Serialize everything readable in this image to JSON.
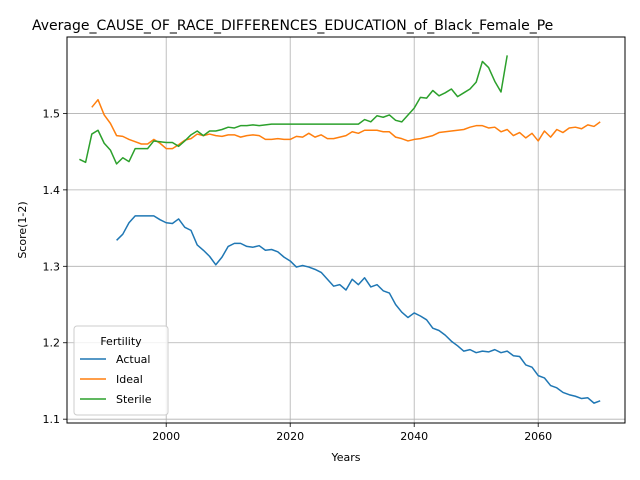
{
  "chart_data": {
    "type": "line",
    "title": "Average_CAUSE_OF_RACE_DIFFERENCES_EDUCATION_of_Black_Female_Pe",
    "xlabel": "Years",
    "ylabel": "Score(1-2)",
    "xlim": [
      1984,
      2074
    ],
    "ylim": [
      1.095,
      1.6
    ],
    "xticks": [
      2000,
      2020,
      2040,
      2060
    ],
    "yticks": [
      1.1,
      1.2,
      1.3,
      1.4,
      1.5
    ],
    "grid": true,
    "legend": {
      "title": "Fertility",
      "position": "lower-left"
    },
    "series": [
      {
        "name": "Actual",
        "color": "#1f77b4",
        "x": [
          1992,
          1993,
          1994,
          1995,
          1996,
          1997,
          1998,
          1999,
          2000,
          2001,
          2002,
          2003,
          2004,
          2005,
          2006,
          2007,
          2008,
          2009,
          2010,
          2011,
          2012,
          2013,
          2014,
          2015,
          2016,
          2017,
          2018,
          2019,
          2020,
          2021,
          2022,
          2023,
          2024,
          2025,
          2026,
          2027,
          2028,
          2029,
          2030,
          2031,
          2032,
          2033,
          2034,
          2035,
          2036,
          2037,
          2038,
          2039,
          2040,
          2041,
          2042,
          2043,
          2044,
          2045,
          2046,
          2047,
          2048,
          2049,
          2050,
          2051,
          2052,
          2053,
          2054,
          2055,
          2056,
          2057,
          2058,
          2059,
          2060,
          2061,
          2062,
          2063,
          2064,
          2065,
          2066,
          2067,
          2068,
          2069,
          2070
        ],
        "values": [
          1.334,
          1.342,
          1.357,
          1.366,
          1.366,
          1.366,
          1.366,
          1.361,
          1.357,
          1.356,
          1.362,
          1.351,
          1.347,
          1.328,
          1.321,
          1.313,
          1.302,
          1.312,
          1.326,
          1.33,
          1.33,
          1.326,
          1.325,
          1.327,
          1.321,
          1.322,
          1.319,
          1.312,
          1.307,
          1.299,
          1.301,
          1.299,
          1.296,
          1.292,
          1.283,
          1.274,
          1.276,
          1.269,
          1.283,
          1.276,
          1.285,
          1.273,
          1.276,
          1.268,
          1.265,
          1.25,
          1.24,
          1.233,
          1.239,
          1.235,
          1.23,
          1.219,
          1.216,
          1.21,
          1.202,
          1.196,
          1.189,
          1.191,
          1.187,
          1.189,
          1.188,
          1.191,
          1.187,
          1.189,
          1.183,
          1.182,
          1.171,
          1.168,
          1.157,
          1.154,
          1.144,
          1.141,
          1.135,
          1.132,
          1.13,
          1.127,
          1.128,
          1.121,
          1.124
        ]
      },
      {
        "name": "Ideal",
        "color": "#ff7f0e",
        "x": [
          1988,
          1989,
          1990,
          1991,
          1992,
          1993,
          1994,
          1995,
          1996,
          1997,
          1998,
          1999,
          2000,
          2001,
          2002,
          2003,
          2004,
          2005,
          2006,
          2007,
          2008,
          2009,
          2010,
          2011,
          2012,
          2013,
          2014,
          2015,
          2016,
          2017,
          2018,
          2019,
          2020,
          2021,
          2022,
          2023,
          2024,
          2025,
          2026,
          2027,
          2028,
          2029,
          2030,
          2031,
          2032,
          2033,
          2034,
          2035,
          2036,
          2037,
          2038,
          2039,
          2040,
          2041,
          2042,
          2043,
          2044,
          2045,
          2046,
          2047,
          2048,
          2049,
          2050,
          2051,
          2052,
          2053,
          2054,
          2055,
          2056,
          2057,
          2058,
          2059,
          2060,
          2061,
          2062,
          2063,
          2064,
          2065,
          2066,
          2067,
          2068,
          2069,
          2070
        ],
        "values": [
          1.508,
          1.518,
          1.498,
          1.487,
          1.471,
          1.47,
          1.466,
          1.463,
          1.46,
          1.46,
          1.466,
          1.461,
          1.454,
          1.454,
          1.459,
          1.465,
          1.467,
          1.473,
          1.471,
          1.473,
          1.471,
          1.47,
          1.472,
          1.472,
          1.469,
          1.471,
          1.472,
          1.471,
          1.466,
          1.466,
          1.467,
          1.466,
          1.466,
          1.47,
          1.469,
          1.474,
          1.469,
          1.472,
          1.467,
          1.467,
          1.469,
          1.471,
          1.476,
          1.474,
          1.478,
          1.478,
          1.478,
          1.476,
          1.476,
          1.469,
          1.467,
          1.464,
          1.466,
          1.467,
          1.469,
          1.471,
          1.475,
          1.476,
          1.477,
          1.478,
          1.479,
          1.482,
          1.484,
          1.484,
          1.481,
          1.482,
          1.476,
          1.479,
          1.471,
          1.475,
          1.468,
          1.474,
          1.464,
          1.477,
          1.469,
          1.479,
          1.475,
          1.481,
          1.482,
          1.48,
          1.485,
          1.483,
          1.489
        ]
      },
      {
        "name": "Sterile",
        "color": "#2ca02c",
        "x": [
          1986,
          1987,
          1988,
          1989,
          1990,
          1991,
          1992,
          1993,
          1994,
          1995,
          1996,
          1997,
          1998,
          1999,
          2000,
          2001,
          2002,
          2003,
          2004,
          2005,
          2006,
          2007,
          2008,
          2009,
          2010,
          2011,
          2012,
          2013,
          2014,
          2015,
          2016,
          2017,
          2018,
          2019,
          2020,
          2021,
          2022,
          2023,
          2024,
          2025,
          2026,
          2027,
          2028,
          2029,
          2030,
          2031,
          2032,
          2033,
          2034,
          2035,
          2036,
          2037,
          2038,
          2039,
          2040,
          2041,
          2042,
          2043,
          2044,
          2045,
          2046,
          2047,
          2048,
          2049,
          2050,
          2051,
          2052,
          2053,
          2054,
          2055
        ],
        "values": [
          1.44,
          1.436,
          1.473,
          1.478,
          1.461,
          1.452,
          1.434,
          1.442,
          1.437,
          1.454,
          1.454,
          1.454,
          1.464,
          1.463,
          1.462,
          1.462,
          1.457,
          1.464,
          1.472,
          1.477,
          1.471,
          1.477,
          1.477,
          1.479,
          1.482,
          1.481,
          1.484,
          1.484,
          1.485,
          1.484,
          1.485,
          1.486,
          1.486,
          1.486,
          1.486,
          1.486,
          1.486,
          1.486,
          1.486,
          1.486,
          1.486,
          1.486,
          1.486,
          1.486,
          1.486,
          1.486,
          1.492,
          1.489,
          1.497,
          1.495,
          1.498,
          1.491,
          1.489,
          1.498,
          1.507,
          1.521,
          1.52,
          1.53,
          1.523,
          1.527,
          1.532,
          1.522,
          1.527,
          1.532,
          1.541,
          1.568,
          1.56,
          1.542,
          1.528,
          1.576
        ]
      }
    ]
  }
}
